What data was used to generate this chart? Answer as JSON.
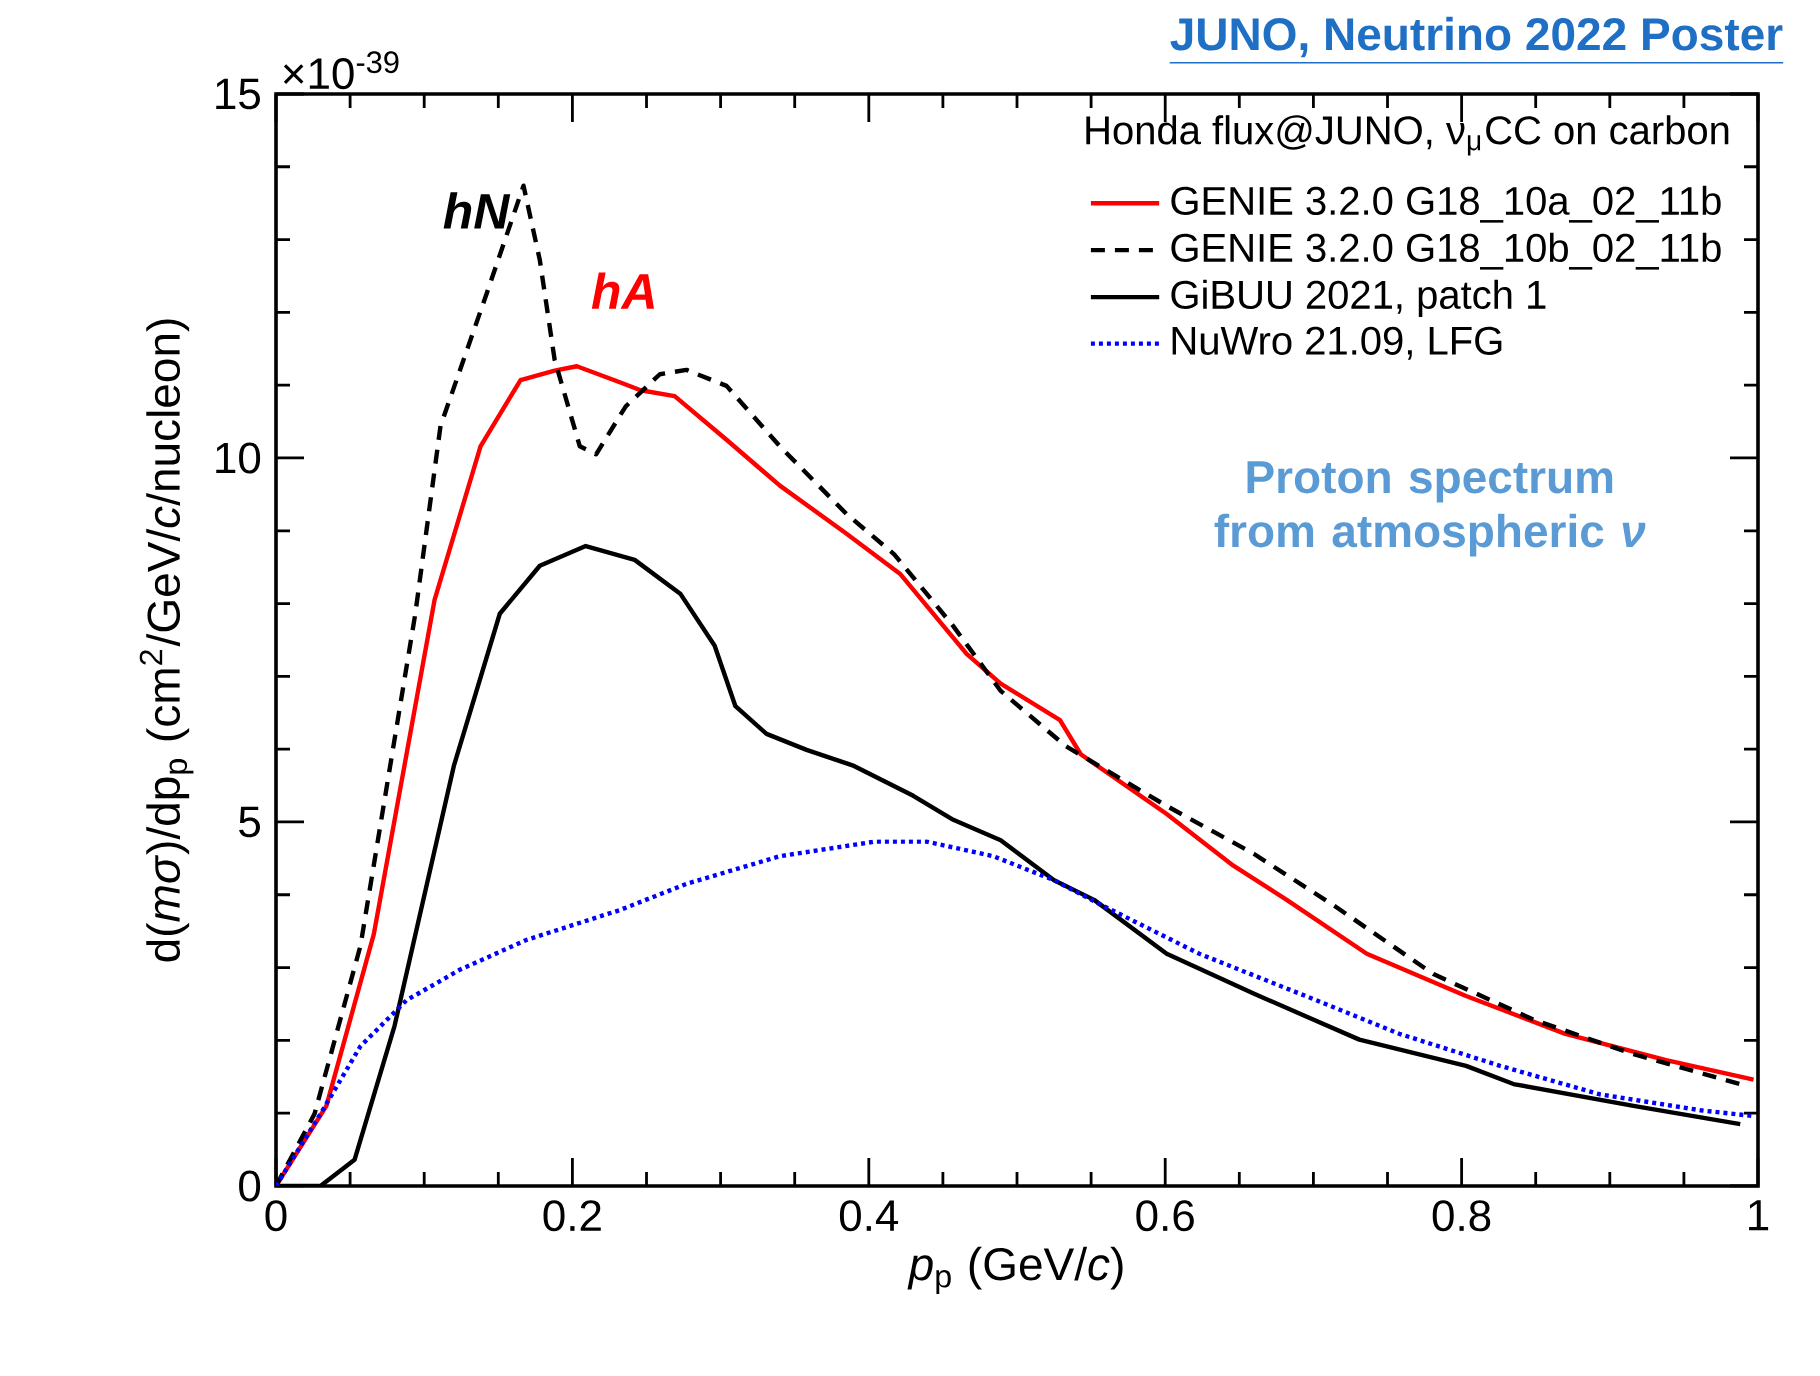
{
  "chart_data": {
    "type": "line",
    "title": "JUNO, Neutrino 2022 Poster",
    "xlabel": "*p*$_{p}$ (GeV/*c*)",
    "ylabel": "d(*mσ*)/dp$_{p}$ (cm$^{2}$/GeV/*c*/nucleon)",
    "legend_title": "Honda flux@JUNO, ν$_{μ}$CC on carbon",
    "legend": "top right",
    "grid": false,
    "marker": "none",
    "xlim": [
      0,
      1
    ],
    "ylim": [
      0,
      15
    ],
    "xticks": [
      0,
      0.2,
      0.4,
      0.6,
      0.8,
      1
    ],
    "yticks": [
      0,
      5,
      10,
      15
    ],
    "annotations": [
      "×10$^{-39}$",
      "Proton spectrum from atmospheric *ν*",
      "hN",
      "hA"
    ],
    "series": [
      {
        "name": "GENIE 3.2.0 G18_10a_02_11b",
        "color": "#ff0000",
        "line_style": "solid",
        "x": [
          0,
          0.034,
          0.066,
          0.107,
          0.138,
          0.165,
          0.188,
          0.203,
          0.232,
          0.246,
          0.269,
          0.304,
          0.34,
          0.385,
          0.421,
          0.466,
          0.489,
          0.529,
          0.543,
          0.601,
          0.646,
          0.682,
          0.736,
          0.803,
          0.87,
          0.938,
          0.997
        ],
        "values": [
          0,
          1.1,
          3.46,
          8.05,
          10.16,
          11.07,
          11.2,
          11.26,
          11.04,
          10.93,
          10.85,
          10.25,
          9.62,
          8.96,
          8.41,
          7.31,
          6.9,
          6.4,
          5.93,
          5.11,
          4.4,
          3.93,
          3.19,
          2.61,
          2.09,
          1.73,
          1.46
        ]
      },
      {
        "name": "GENIE 3.2.0 G18_10b_02_11b",
        "color": "#000000",
        "line_style": "dashed",
        "x": [
          0,
          0.026,
          0.057,
          0.094,
          0.111,
          0.142,
          0.167,
          0.178,
          0.188,
          0.205,
          0.216,
          0.236,
          0.259,
          0.277,
          0.304,
          0.34,
          0.385,
          0.417,
          0.457,
          0.489,
          0.533,
          0.601,
          0.66,
          0.714,
          0.781,
          0.849,
          0.916,
          0.988
        ],
        "values": [
          0,
          0.99,
          3.3,
          7.86,
          10.44,
          12.25,
          13.74,
          12.72,
          11.35,
          10.16,
          10.05,
          10.71,
          11.15,
          11.21,
          10.99,
          10.16,
          9.23,
          8.68,
          7.69,
          6.8,
          6.04,
          5.22,
          4.56,
          3.85,
          2.91,
          2.28,
          1.81,
          1.4
        ]
      },
      {
        "name": "GiBUU 2021, patch 1",
        "color": "#000000",
        "line_style": "solid",
        "x": [
          0,
          0.03,
          0.053,
          0.08,
          0.12,
          0.151,
          0.178,
          0.209,
          0.242,
          0.273,
          0.296,
          0.31,
          0.331,
          0.358,
          0.39,
          0.43,
          0.457,
          0.489,
          0.525,
          0.552,
          0.601,
          0.66,
          0.731,
          0.803,
          0.835,
          0.916,
          0.988
        ],
        "values": [
          0,
          0,
          0.36,
          2.2,
          5.77,
          7.86,
          8.52,
          8.79,
          8.6,
          8.13,
          7.42,
          6.59,
          6.21,
          5.99,
          5.77,
          5.36,
          5.03,
          4.75,
          4.2,
          3.93,
          3.19,
          2.64,
          2.01,
          1.65,
          1.4,
          1.1,
          0.85
        ]
      },
      {
        "name": "NuWro 21.09, LFG",
        "color": "#0000ff",
        "line_style": "dotted",
        "x": [
          0,
          0.03,
          0.057,
          0.088,
          0.124,
          0.169,
          0.232,
          0.277,
          0.34,
          0.404,
          0.439,
          0.484,
          0.525,
          0.556,
          0.623,
          0.691,
          0.758,
          0.826,
          0.893,
          0.961,
          0.997
        ],
        "values": [
          0,
          0.99,
          1.92,
          2.55,
          2.97,
          3.38,
          3.79,
          4.15,
          4.53,
          4.73,
          4.73,
          4.53,
          4.2,
          3.87,
          3.19,
          2.64,
          2.09,
          1.65,
          1.26,
          1.04,
          0.96
        ]
      }
    ]
  }
}
